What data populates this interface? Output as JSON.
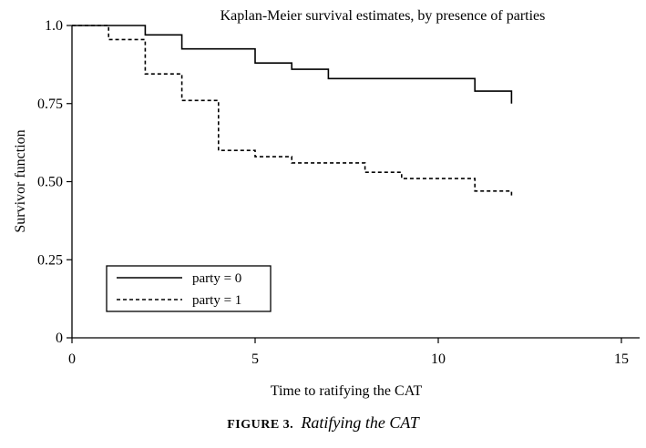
{
  "chart_data": {
    "type": "line",
    "title": "Kaplan-Meier survival estimates, by presence of parties",
    "xlabel": "Time to ratifying the CAT",
    "ylabel": "Survivor function",
    "xlim": [
      0,
      15
    ],
    "ylim": [
      0,
      1
    ],
    "xticks": [
      "0",
      "5",
      "10",
      "15"
    ],
    "yticks": [
      "0",
      "0.25",
      "0.50",
      "0.75",
      "1.0"
    ],
    "grid": false,
    "legend_position": "bottom-left",
    "series": [
      {
        "name": "party = 0",
        "style": "solid",
        "x": [
          0,
          2,
          3,
          5,
          6,
          7,
          11,
          12
        ],
        "y": [
          1.0,
          0.97,
          0.925,
          0.88,
          0.86,
          0.83,
          0.79,
          0.75
        ]
      },
      {
        "name": "party = 1",
        "style": "dashed",
        "x": [
          0,
          1,
          2,
          3,
          4,
          5,
          6,
          8,
          9,
          11,
          12
        ],
        "y": [
          1.0,
          0.955,
          0.845,
          0.76,
          0.6,
          0.58,
          0.56,
          0.53,
          0.51,
          0.47,
          0.45
        ]
      }
    ]
  },
  "caption": {
    "label": "FIGURE 3.",
    "title": "Ratifying the CAT"
  }
}
